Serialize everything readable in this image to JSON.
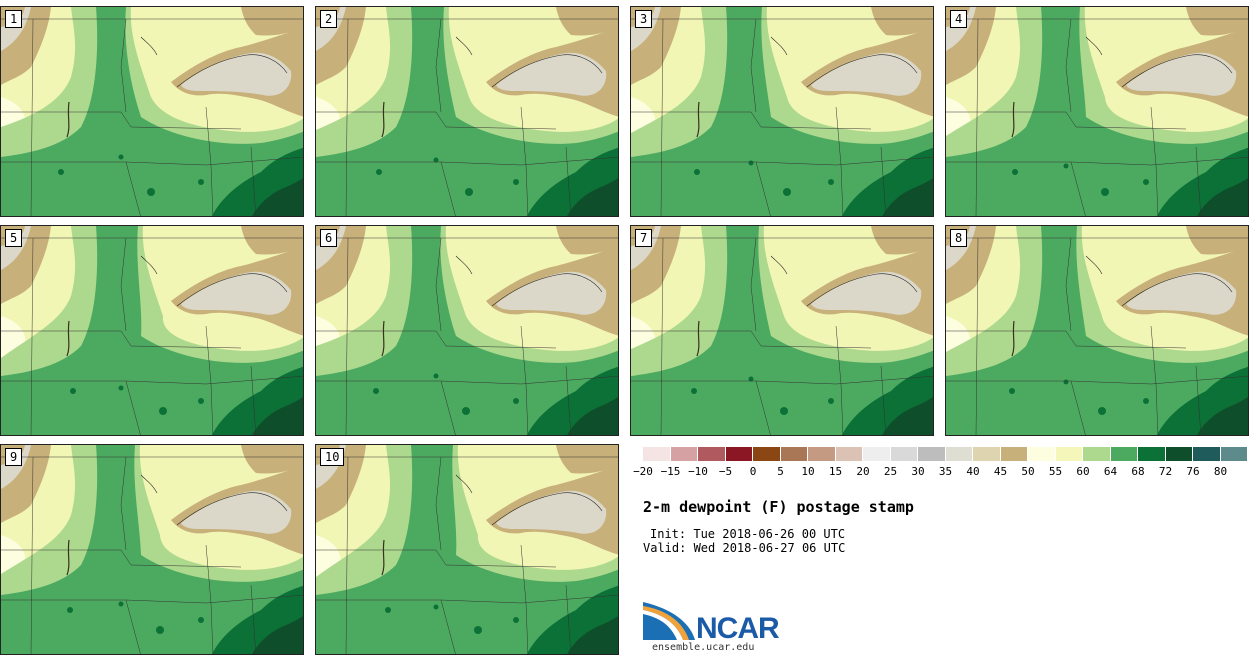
{
  "panels": [
    {
      "label": "1"
    },
    {
      "label": "2"
    },
    {
      "label": "3"
    },
    {
      "label": "4"
    },
    {
      "label": "5"
    },
    {
      "label": "6"
    },
    {
      "label": "7"
    },
    {
      "label": "8"
    },
    {
      "label": "9"
    },
    {
      "label": "10"
    }
  ],
  "colorbar": {
    "colors": [
      "#f5e4e4",
      "#d6a1a3",
      "#b05a60",
      "#8c1724",
      "#8a4713",
      "#a97656",
      "#c59a82",
      "#dcc2b5",
      "#eeeeee",
      "#d9d9d9",
      "#bdbdbd",
      "#deded3",
      "#dfd4b0",
      "#c8b07a",
      "#fdfde0",
      "#f4f7b9",
      "#add98e",
      "#4caa60",
      "#0c7137",
      "#0f4e2a",
      "#1f5b5b",
      "#5d8b8b"
    ],
    "ticks": [
      "−20",
      "−15",
      "−10",
      "−5",
      "0",
      "5",
      "10",
      "15",
      "20",
      "25",
      "30",
      "35",
      "40",
      "45",
      "50",
      "55",
      "60",
      "64",
      "68",
      "72",
      "76",
      "80"
    ]
  },
  "title": "2-m dewpoint (F) postage stamp",
  "init": "Init: Tue 2018-06-26 00 UTC",
  "valid": "Valid: Wed 2018-06-27 06 UTC",
  "logo": {
    "text": "NCAR",
    "site": "ensemble.ucar.edu"
  }
}
